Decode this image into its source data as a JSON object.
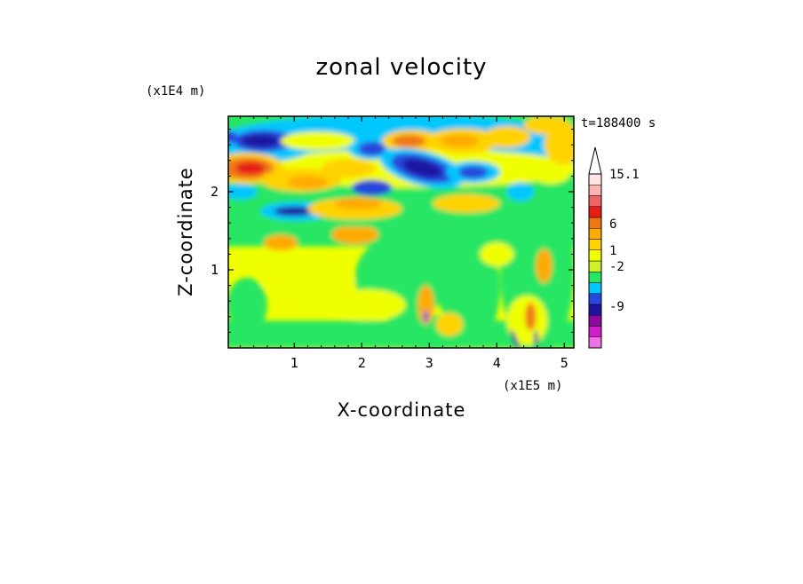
{
  "chart_data": {
    "type": "heatmap",
    "title": "zonal velocity",
    "xlabel": "X-coordinate",
    "ylabel": "Z-coordinate",
    "x_unit": "(x1E5 m)",
    "y_unit": "(x1E4 m)",
    "time_label": "t=188400 s",
    "xlim": [
      0,
      5.15
    ],
    "ylim": [
      0,
      2.95
    ],
    "x_ticks": [
      "1",
      "2",
      "3",
      "4",
      "5"
    ],
    "y_ticks": [
      "1",
      "2"
    ],
    "colorbar": {
      "labels": [
        "15.1",
        "6",
        "1",
        "-2",
        "-9"
      ],
      "colors": [
        "#f070e8",
        "#d21ec8",
        "#8c0aa0",
        "#1e14a0",
        "#2846dc",
        "#00c8ff",
        "#28e664",
        "#d2f028",
        "#f0ff00",
        "#ffd200",
        "#ffaa00",
        "#f07814",
        "#e61e14",
        "#f06464",
        "#ffb4b4",
        "#ffe6e6"
      ],
      "extend_top": true
    },
    "field_features": [
      {
        "kind": "jet",
        "sign": "positive",
        "x": 0.3,
        "z": 2.3,
        "value": 6
      },
      {
        "kind": "jet",
        "sign": "negative",
        "x": 0.55,
        "z": 2.65,
        "value": -9
      },
      {
        "kind": "jet",
        "sign": "negative",
        "x": 2.9,
        "z": 2.3,
        "value": -12
      },
      {
        "kind": "jet",
        "sign": "positive",
        "x": 2.7,
        "z": 2.6,
        "value": 6
      },
      {
        "kind": "jet",
        "sign": "positive",
        "x": 3.5,
        "z": 2.65,
        "value": 4
      },
      {
        "kind": "jet",
        "sign": "negative",
        "x": 3.65,
        "z": 2.25,
        "value": -9
      },
      {
        "kind": "jet",
        "sign": "negative",
        "x": 1.0,
        "z": 1.75,
        "value": -9
      },
      {
        "kind": "jet",
        "sign": "positive",
        "x": 4.65,
        "z": 1.05,
        "value": 6
      }
    ]
  }
}
